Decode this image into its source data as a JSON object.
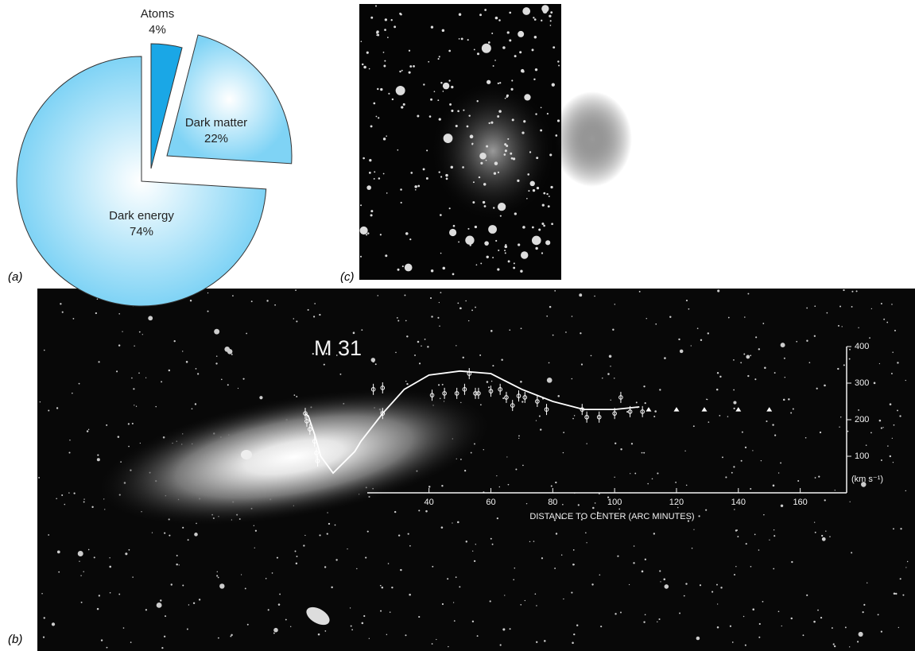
{
  "panel_labels": [
    "(a)",
    "(c)",
    "(b)"
  ],
  "chart_data": [
    {
      "type": "pie",
      "categories": [
        "Atoms",
        "Dark matter",
        "Dark energy"
      ],
      "values": [
        4,
        22,
        74
      ],
      "value_labels": [
        "4%",
        "22%",
        "74%"
      ],
      "colors": [
        "#1aa7e6",
        "#7fd3f5",
        "#8dd6f5"
      ]
    },
    {
      "type": "line",
      "title": "M 31",
      "x_label": "DISTANCE TO CENTER (ARC MINUTES)",
      "y_label": "(km s⁻¹)",
      "xlim": [
        0,
        175
      ],
      "ylim": [
        0,
        400
      ],
      "xticks": [
        40,
        60,
        80,
        100,
        120,
        140,
        160
      ],
      "yticks": [
        100,
        200,
        300,
        400
      ],
      "series": [
        {
          "marker": "line",
          "color": "#ffffff",
          "x": [
            0,
            1,
            3,
            5,
            9,
            16,
            18,
            25,
            32,
            40,
            50,
            60,
            70,
            80,
            90,
            100,
            108
          ],
          "values": [
            217,
            210,
            160,
            100,
            54,
            113,
            141,
            217,
            283,
            322,
            333,
            326,
            283,
            250,
            228,
            228,
            235
          ]
        },
        {
          "marker": "circle",
          "color": "#ffffff",
          "x": [
            0,
            0.5,
            1.5,
            3,
            3.6,
            4,
            22,
            25,
            25,
            41,
            45,
            49,
            51.5,
            53,
            55,
            56,
            60,
            63,
            65,
            67,
            69,
            71,
            75,
            78,
            89.5,
            91,
            95,
            100,
            102,
            105,
            109
          ],
          "values": [
            217,
            196,
            174,
            141,
            109,
            87,
            283,
            287,
            217,
            267,
            272,
            272,
            283,
            326,
            272,
            272,
            278,
            283,
            261,
            239,
            265,
            261,
            250,
            228,
            228,
            207,
            207,
            217,
            261,
            222,
            222
          ]
        },
        {
          "marker": "triangle",
          "color": "#ffffff",
          "x": [
            111,
            120,
            129,
            140,
            150
          ],
          "values": [
            228,
            228,
            228,
            228,
            228
          ]
        }
      ]
    }
  ]
}
